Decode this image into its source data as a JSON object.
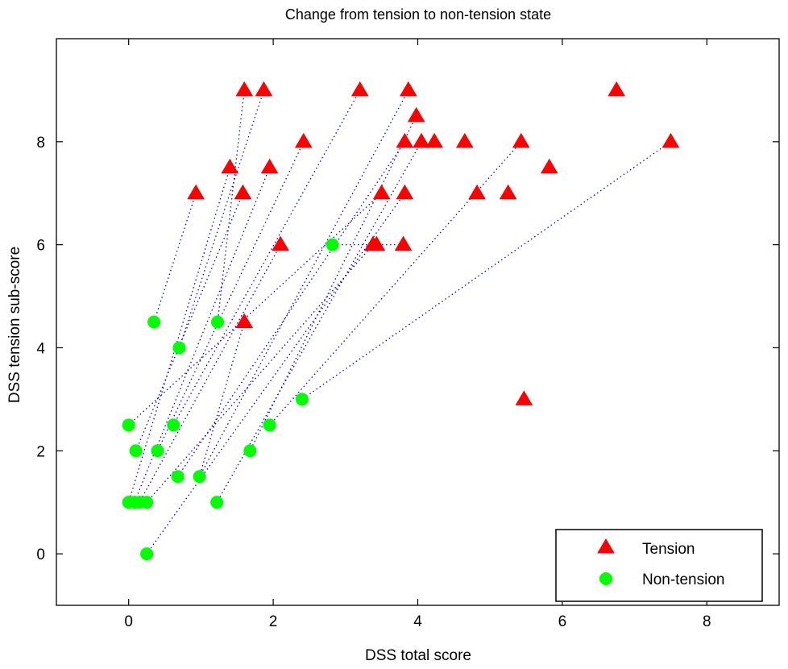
{
  "chart_data": {
    "type": "scatter",
    "title": "Change from tension to non-tension state",
    "xlabel": "DSS total score",
    "ylabel": "DSS tension sub-score",
    "xlim": [
      -1,
      9
    ],
    "ylim": [
      -1,
      10
    ],
    "xticks": [
      0,
      2,
      4,
      6,
      8
    ],
    "yticks": [
      0,
      2,
      4,
      6,
      8
    ],
    "grid": false,
    "legend_position": "bottom-right",
    "series": [
      {
        "name": "Tension",
        "marker": "triangle",
        "color": "#ff0000",
        "points": [
          [
            1.6,
            9
          ],
          [
            1.87,
            9
          ],
          [
            3.2,
            9
          ],
          [
            3.87,
            9
          ],
          [
            6.75,
            9
          ],
          [
            3.98,
            8.5
          ],
          [
            2.42,
            8
          ],
          [
            3.82,
            8
          ],
          [
            4.05,
            8
          ],
          [
            4.23,
            8
          ],
          [
            4.65,
            8
          ],
          [
            5.43,
            8
          ],
          [
            7.5,
            8
          ],
          [
            1.4,
            7.5
          ],
          [
            1.95,
            7.5
          ],
          [
            5.82,
            7.5
          ],
          [
            0.93,
            7
          ],
          [
            1.58,
            7
          ],
          [
            3.5,
            7
          ],
          [
            3.82,
            7
          ],
          [
            4.82,
            7
          ],
          [
            5.25,
            7
          ],
          [
            2.1,
            6
          ],
          [
            3.38,
            6
          ],
          [
            3.43,
            6
          ],
          [
            3.8,
            6
          ],
          [
            1.6,
            4.5
          ],
          [
            5.47,
            3
          ]
        ]
      },
      {
        "name": "Non-tension",
        "marker": "circle",
        "color": "#00ff00",
        "points": [
          [
            0.35,
            4.5
          ],
          [
            1.23,
            4.5
          ],
          [
            0.7,
            4
          ],
          [
            2.82,
            6
          ],
          [
            2.4,
            3
          ],
          [
            0.0,
            2.5
          ],
          [
            0.62,
            2.5
          ],
          [
            1.95,
            2.5
          ],
          [
            0.1,
            2
          ],
          [
            0.4,
            2
          ],
          [
            1.68,
            2
          ],
          [
            0.68,
            1.5
          ],
          [
            0.98,
            1.5
          ],
          [
            0.0,
            1
          ],
          [
            0.08,
            1
          ],
          [
            0.15,
            1
          ],
          [
            0.25,
            1
          ],
          [
            1.22,
            1
          ],
          [
            0.25,
            0
          ]
        ]
      }
    ],
    "connections": {
      "style": "dotted",
      "color": "#0000ff",
      "pairs": [
        [
          [
            1.6,
            9
          ],
          [
            1.23,
            4.5
          ]
        ],
        [
          [
            1.87,
            9
          ],
          [
            0.7,
            4
          ]
        ],
        [
          [
            3.2,
            9
          ],
          [
            0.62,
            2.5
          ]
        ],
        [
          [
            3.87,
            9
          ],
          [
            0.98,
            1.5
          ]
        ],
        [
          [
            3.98,
            8.5
          ],
          [
            1.68,
            2
          ]
        ],
        [
          [
            2.42,
            8
          ],
          [
            0.4,
            2
          ]
        ],
        [
          [
            3.82,
            8
          ],
          [
            0.68,
            1.5
          ]
        ],
        [
          [
            4.05,
            8
          ],
          [
            1.22,
            1
          ]
        ],
        [
          [
            5.43,
            8
          ],
          [
            1.95,
            2.5
          ]
        ],
        [
          [
            7.5,
            8
          ],
          [
            2.4,
            3
          ]
        ],
        [
          [
            1.4,
            7.5
          ],
          [
            0.0,
            1
          ]
        ],
        [
          [
            1.95,
            7.5
          ],
          [
            0.08,
            1
          ]
        ],
        [
          [
            0.93,
            7
          ],
          [
            0.35,
            4.5
          ]
        ],
        [
          [
            1.58,
            7
          ],
          [
            0.1,
            2
          ]
        ],
        [
          [
            3.5,
            7
          ],
          [
            0.0,
            2.5
          ]
        ],
        [
          [
            3.82,
            7
          ],
          [
            0.25,
            0
          ]
        ],
        [
          [
            2.1,
            6
          ],
          [
            0.15,
            1
          ]
        ],
        [
          [
            3.38,
            6
          ],
          [
            0.25,
            1
          ]
        ],
        [
          [
            3.8,
            6
          ],
          [
            2.82,
            6
          ]
        ],
        [
          [
            1.6,
            4.5
          ],
          [
            0.98,
            1.5
          ]
        ]
      ]
    }
  }
}
